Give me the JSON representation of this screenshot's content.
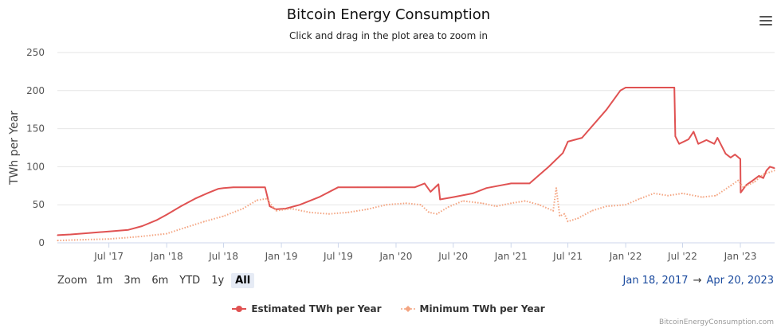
{
  "title": "Bitcoin Energy Consumption",
  "subtitle": "Click and drag in the plot area to zoom in",
  "menu_icon": "hamburger-menu-icon",
  "zoom": {
    "label": "Zoom",
    "buttons": [
      "1m",
      "3m",
      "6m",
      "YTD",
      "1y",
      "All"
    ],
    "active": "All"
  },
  "range": {
    "from": "Jan 18, 2017",
    "arrow": "→",
    "to": "Apr 20, 2023"
  },
  "legend": [
    "Estimated TWh per Year",
    "Minimum TWh per Year"
  ],
  "credit": "BitcoinEnergyConsumption.com",
  "colors": {
    "estimated": "#e05252",
    "minimum": "#f4a582",
    "grid": "#e6e6e6",
    "range_text": "#1a4a9e"
  },
  "chart_data": {
    "type": "line",
    "title": "Bitcoin Energy Consumption",
    "subtitle": "Click and drag in the plot area to zoom in",
    "ylabel": "TWh per Year",
    "xlabel": "",
    "ylim": [
      0,
      250
    ],
    "yticks": [
      0,
      50,
      100,
      150,
      200,
      250
    ],
    "xlim": [
      "2017-01-18",
      "2023-04-20"
    ],
    "xticks": [
      "Jul '17",
      "Jan '18",
      "Jul '18",
      "Jan '19",
      "Jul '19",
      "Jan '20",
      "Jul '20",
      "Jan '21",
      "Jul '21",
      "Jan '22",
      "Jul '22",
      "Jan '23"
    ],
    "xtick_dates": [
      "2017-07-01",
      "2018-01-01",
      "2018-07-01",
      "2019-01-01",
      "2019-07-01",
      "2020-01-01",
      "2020-07-01",
      "2021-01-01",
      "2021-07-01",
      "2022-01-01",
      "2022-07-01",
      "2023-01-01"
    ],
    "grid": true,
    "legend_position": "bottom-center",
    "series": [
      {
        "name": "Estimated TWh per Year",
        "style": "solid",
        "x": [
          "2017-01-18",
          "2017-03-01",
          "2017-05-01",
          "2017-07-01",
          "2017-09-01",
          "2017-10-15",
          "2017-12-01",
          "2018-01-01",
          "2018-02-15",
          "2018-04-01",
          "2018-05-15",
          "2018-06-15",
          "2018-07-01",
          "2018-08-01",
          "2018-11-10",
          "2018-11-25",
          "2018-12-15",
          "2019-01-15",
          "2019-03-01",
          "2019-05-01",
          "2019-07-01",
          "2019-09-01",
          "2019-12-01",
          "2020-03-01",
          "2020-04-01",
          "2020-04-20",
          "2020-05-15",
          "2020-05-20",
          "2020-07-01",
          "2020-09-01",
          "2020-10-15",
          "2021-01-01",
          "2021-03-01",
          "2021-05-01",
          "2021-06-15",
          "2021-07-01",
          "2021-08-15",
          "2021-11-01",
          "2021-12-15",
          "2022-01-01",
          "2022-06-05",
          "2022-06-08",
          "2022-06-20",
          "2022-07-20",
          "2022-08-05",
          "2022-08-20",
          "2022-09-15",
          "2022-10-10",
          "2022-10-20",
          "2022-11-15",
          "2022-12-01",
          "2022-12-15",
          "2023-01-01",
          "2023-01-02",
          "2023-01-20",
          "2023-02-10",
          "2023-03-01",
          "2023-03-15",
          "2023-03-25",
          "2023-04-05",
          "2023-04-20"
        ],
        "values": [
          10,
          11,
          13,
          15,
          17,
          22,
          30,
          37,
          48,
          58,
          66,
          71,
          72,
          73,
          73,
          48,
          44,
          45,
          50,
          60,
          73,
          73,
          73,
          73,
          78,
          67,
          77,
          57,
          60,
          65,
          72,
          78,
          78,
          100,
          118,
          133,
          138,
          175,
          200,
          204,
          204,
          140,
          130,
          136,
          146,
          130,
          135,
          130,
          138,
          117,
          112,
          116,
          110,
          66,
          76,
          82,
          88,
          85,
          95,
          100,
          98
        ]
      },
      {
        "name": "Minimum TWh per Year",
        "style": "dotted",
        "x": [
          "2017-01-18",
          "2017-04-01",
          "2017-07-01",
          "2017-10-01",
          "2018-01-01",
          "2018-03-01",
          "2018-05-01",
          "2018-07-01",
          "2018-09-01",
          "2018-10-15",
          "2018-11-15",
          "2018-12-15",
          "2019-02-01",
          "2019-04-01",
          "2019-06-01",
          "2019-08-01",
          "2019-10-01",
          "2019-12-01",
          "2020-02-01",
          "2020-03-20",
          "2020-04-15",
          "2020-05-10",
          "2020-06-15",
          "2020-08-01",
          "2020-10-01",
          "2020-11-15",
          "2021-01-01",
          "2021-02-15",
          "2021-04-01",
          "2021-05-15",
          "2021-05-25",
          "2021-06-05",
          "2021-06-20",
          "2021-07-01",
          "2021-08-01",
          "2021-09-15",
          "2021-11-01",
          "2022-01-01",
          "2022-02-15",
          "2022-04-01",
          "2022-05-15",
          "2022-07-01",
          "2022-09-01",
          "2022-10-15",
          "2022-12-01",
          "2022-12-25",
          "2023-01-10",
          "2023-02-15",
          "2023-03-15",
          "2023-04-20"
        ],
        "values": [
          3,
          4,
          5,
          8,
          12,
          20,
          28,
          35,
          45,
          56,
          58,
          42,
          45,
          40,
          38,
          40,
          44,
          50,
          52,
          50,
          40,
          38,
          47,
          55,
          52,
          48,
          52,
          55,
          50,
          42,
          72,
          35,
          38,
          28,
          32,
          42,
          48,
          50,
          58,
          65,
          62,
          65,
          60,
          62,
          75,
          82,
          73,
          80,
          90,
          95
        ]
      }
    ]
  }
}
